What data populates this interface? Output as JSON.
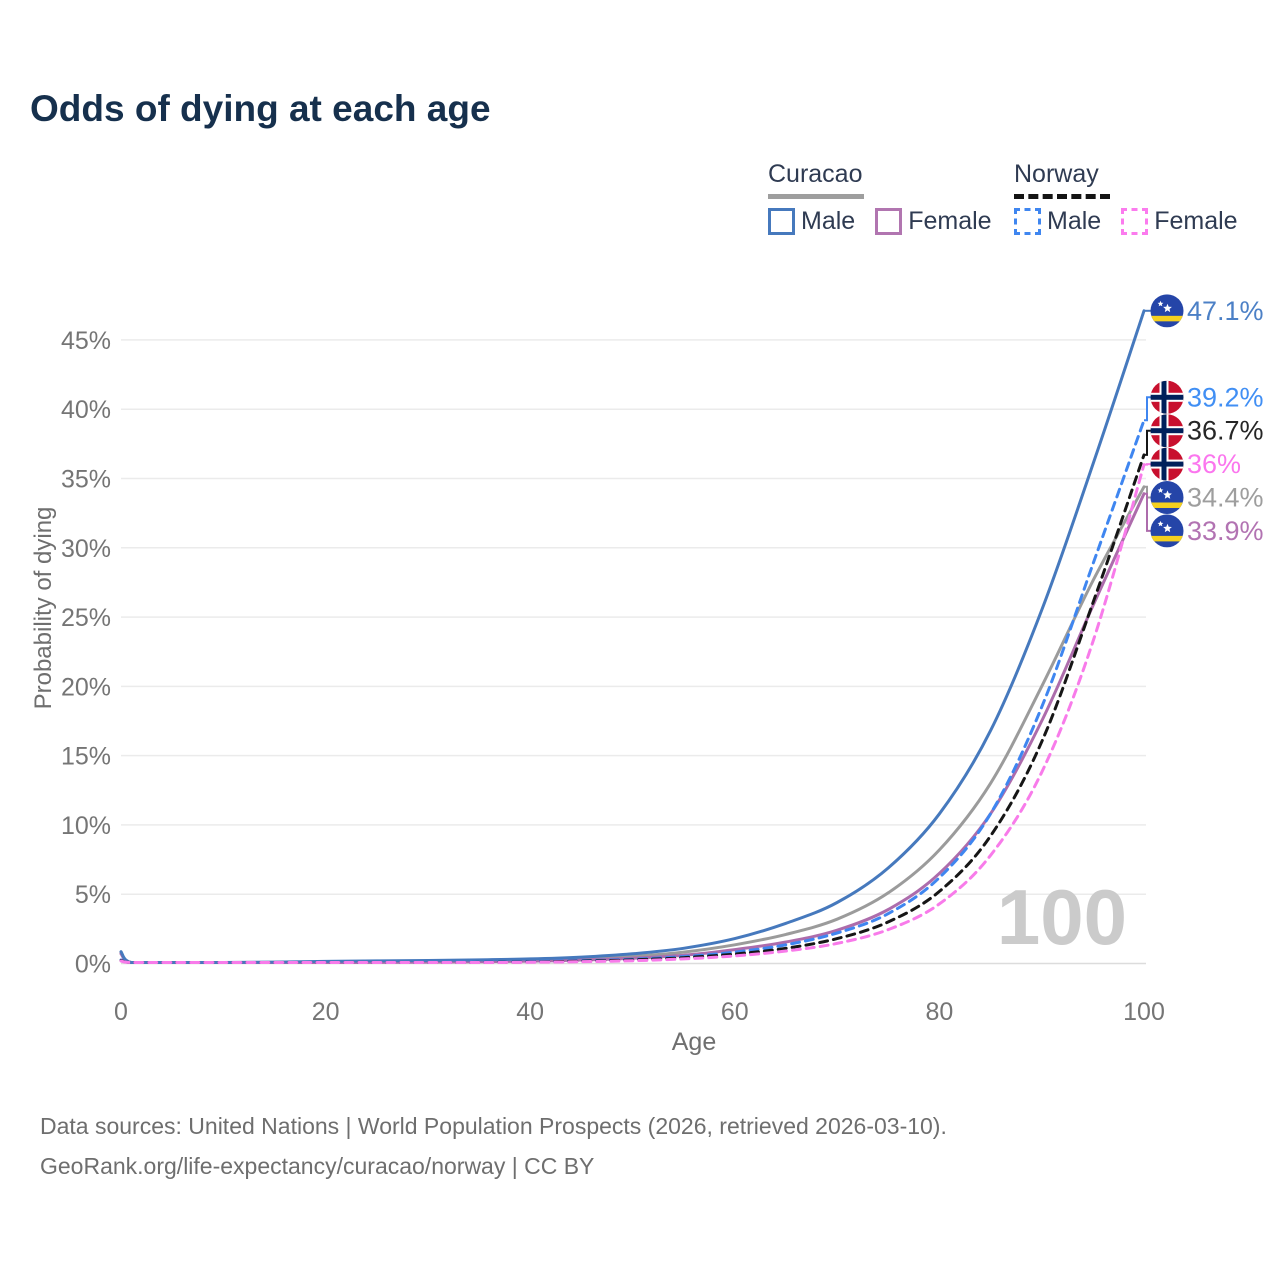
{
  "title": "Odds of dying at each age",
  "legend": {
    "groups": [
      {
        "label": "Curacao",
        "underline_color": "#9e9e9e",
        "underline_dashed": false,
        "items": [
          {
            "label": "Male",
            "color": "#4679bd",
            "dashed": false
          },
          {
            "label": "Female",
            "color": "#b175b0",
            "dashed": false
          }
        ]
      },
      {
        "label": "Norway",
        "underline_color": "#141414",
        "underline_dashed": true,
        "items": [
          {
            "label": "Male",
            "color": "#3f86f0",
            "dashed": true
          },
          {
            "label": "Female",
            "color": "#fb7bee",
            "dashed": true
          }
        ]
      }
    ]
  },
  "chart_data": {
    "type": "line",
    "title": "Odds of dying at each age",
    "xlabel": "Age",
    "ylabel": "Probability of dying",
    "xlim": [
      0,
      100
    ],
    "ylim": [
      0,
      47.5
    ],
    "x_ticks": [
      0,
      20,
      40,
      60,
      80,
      100
    ],
    "y_ticks": [
      0,
      5,
      10,
      15,
      20,
      25,
      30,
      35,
      40,
      45
    ],
    "y_tick_suffix": "%",
    "grid": "horizontal",
    "legend_position": "top-right",
    "watermark": "100",
    "x": [
      0,
      1,
      5,
      10,
      15,
      20,
      25,
      30,
      35,
      40,
      45,
      50,
      55,
      60,
      65,
      70,
      75,
      80,
      85,
      90,
      95,
      100
    ],
    "series": [
      {
        "name": "Curacao Total",
        "country": "Curacao",
        "sex": "Total",
        "color": "#9b9b9b",
        "label_color": "#9e9e9e",
        "dashed": false,
        "flag": "curacao",
        "end_label": "34.4%",
        "values": [
          0.78,
          0.05,
          0.03,
          0.04,
          0.08,
          0.11,
          0.13,
          0.15,
          0.18,
          0.24,
          0.34,
          0.52,
          0.82,
          1.35,
          2.1,
          3.2,
          5.1,
          8.2,
          13.0,
          20.0,
          27.6,
          34.4
        ]
      },
      {
        "name": "Curacao Female",
        "country": "Curacao",
        "sex": "Female",
        "color": "#ad6cac",
        "label_color": "#b273b2",
        "dashed": false,
        "flag": "curacao",
        "end_label": "33.9%",
        "values": [
          0.7,
          0.05,
          0.03,
          0.03,
          0.05,
          0.07,
          0.08,
          0.1,
          0.13,
          0.17,
          0.25,
          0.38,
          0.6,
          1.0,
          1.55,
          2.4,
          3.9,
          6.5,
          10.8,
          17.5,
          25.8,
          33.9
        ]
      },
      {
        "name": "Curacao Male",
        "country": "Curacao",
        "sex": "Male",
        "color": "#4679bd",
        "label_color": "#4c80c6",
        "dashed": false,
        "flag": "curacao",
        "end_label": "47.1%",
        "values": [
          0.85,
          0.06,
          0.04,
          0.05,
          0.1,
          0.15,
          0.19,
          0.22,
          0.26,
          0.33,
          0.46,
          0.7,
          1.1,
          1.8,
          2.9,
          4.4,
          6.9,
          10.8,
          16.8,
          25.5,
          36.0,
          47.1
        ]
      },
      {
        "name": "Norway Male",
        "country": "Norway",
        "sex": "Male",
        "color": "#3f86f0",
        "label_color": "#418ff4",
        "dashed": true,
        "flag": "norway",
        "end_label": "39.2%",
        "values": [
          0.25,
          0.02,
          0.01,
          0.01,
          0.04,
          0.06,
          0.07,
          0.08,
          0.1,
          0.14,
          0.2,
          0.31,
          0.5,
          0.82,
          1.35,
          2.2,
          3.6,
          6.2,
          10.8,
          18.5,
          28.8,
          39.2
        ]
      },
      {
        "name": "Norway Total",
        "country": "Norway",
        "sex": "Total",
        "color": "#161616",
        "label_color": "#262626",
        "dashed": true,
        "flag": "norway",
        "end_label": "36.7%",
        "values": [
          0.22,
          0.02,
          0.01,
          0.01,
          0.03,
          0.05,
          0.06,
          0.07,
          0.08,
          0.11,
          0.17,
          0.26,
          0.42,
          0.68,
          1.1,
          1.8,
          3.0,
          5.2,
          9.2,
          16.0,
          26.0,
          36.7
        ]
      },
      {
        "name": "Norway Female",
        "country": "Norway",
        "sex": "Female",
        "color": "#f87bea",
        "label_color": "#fb76ee",
        "dashed": true,
        "flag": "norway",
        "end_label": "36%",
        "values": [
          0.18,
          0.02,
          0.01,
          0.01,
          0.02,
          0.03,
          0.04,
          0.05,
          0.07,
          0.09,
          0.13,
          0.2,
          0.33,
          0.55,
          0.9,
          1.45,
          2.45,
          4.3,
          7.8,
          13.8,
          23.2,
          36.0
        ]
      }
    ]
  },
  "footer": {
    "line1": "Data sources: United Nations | World Population Prospects (2026, retrieved 2026-03-10).",
    "line2": "GeoRank.org/life-expectancy/curacao/norway | CC BY"
  },
  "colors": {
    "title": "#16304d",
    "axis_text": "#757575",
    "gridline": "#ebebeb",
    "watermark": "#cbcbcb",
    "curacao_flag_blue": "#2545a8",
    "curacao_flag_yellow": "#f5d01f",
    "norway_flag_red": "#c8102e",
    "norway_flag_blue": "#00205b"
  }
}
